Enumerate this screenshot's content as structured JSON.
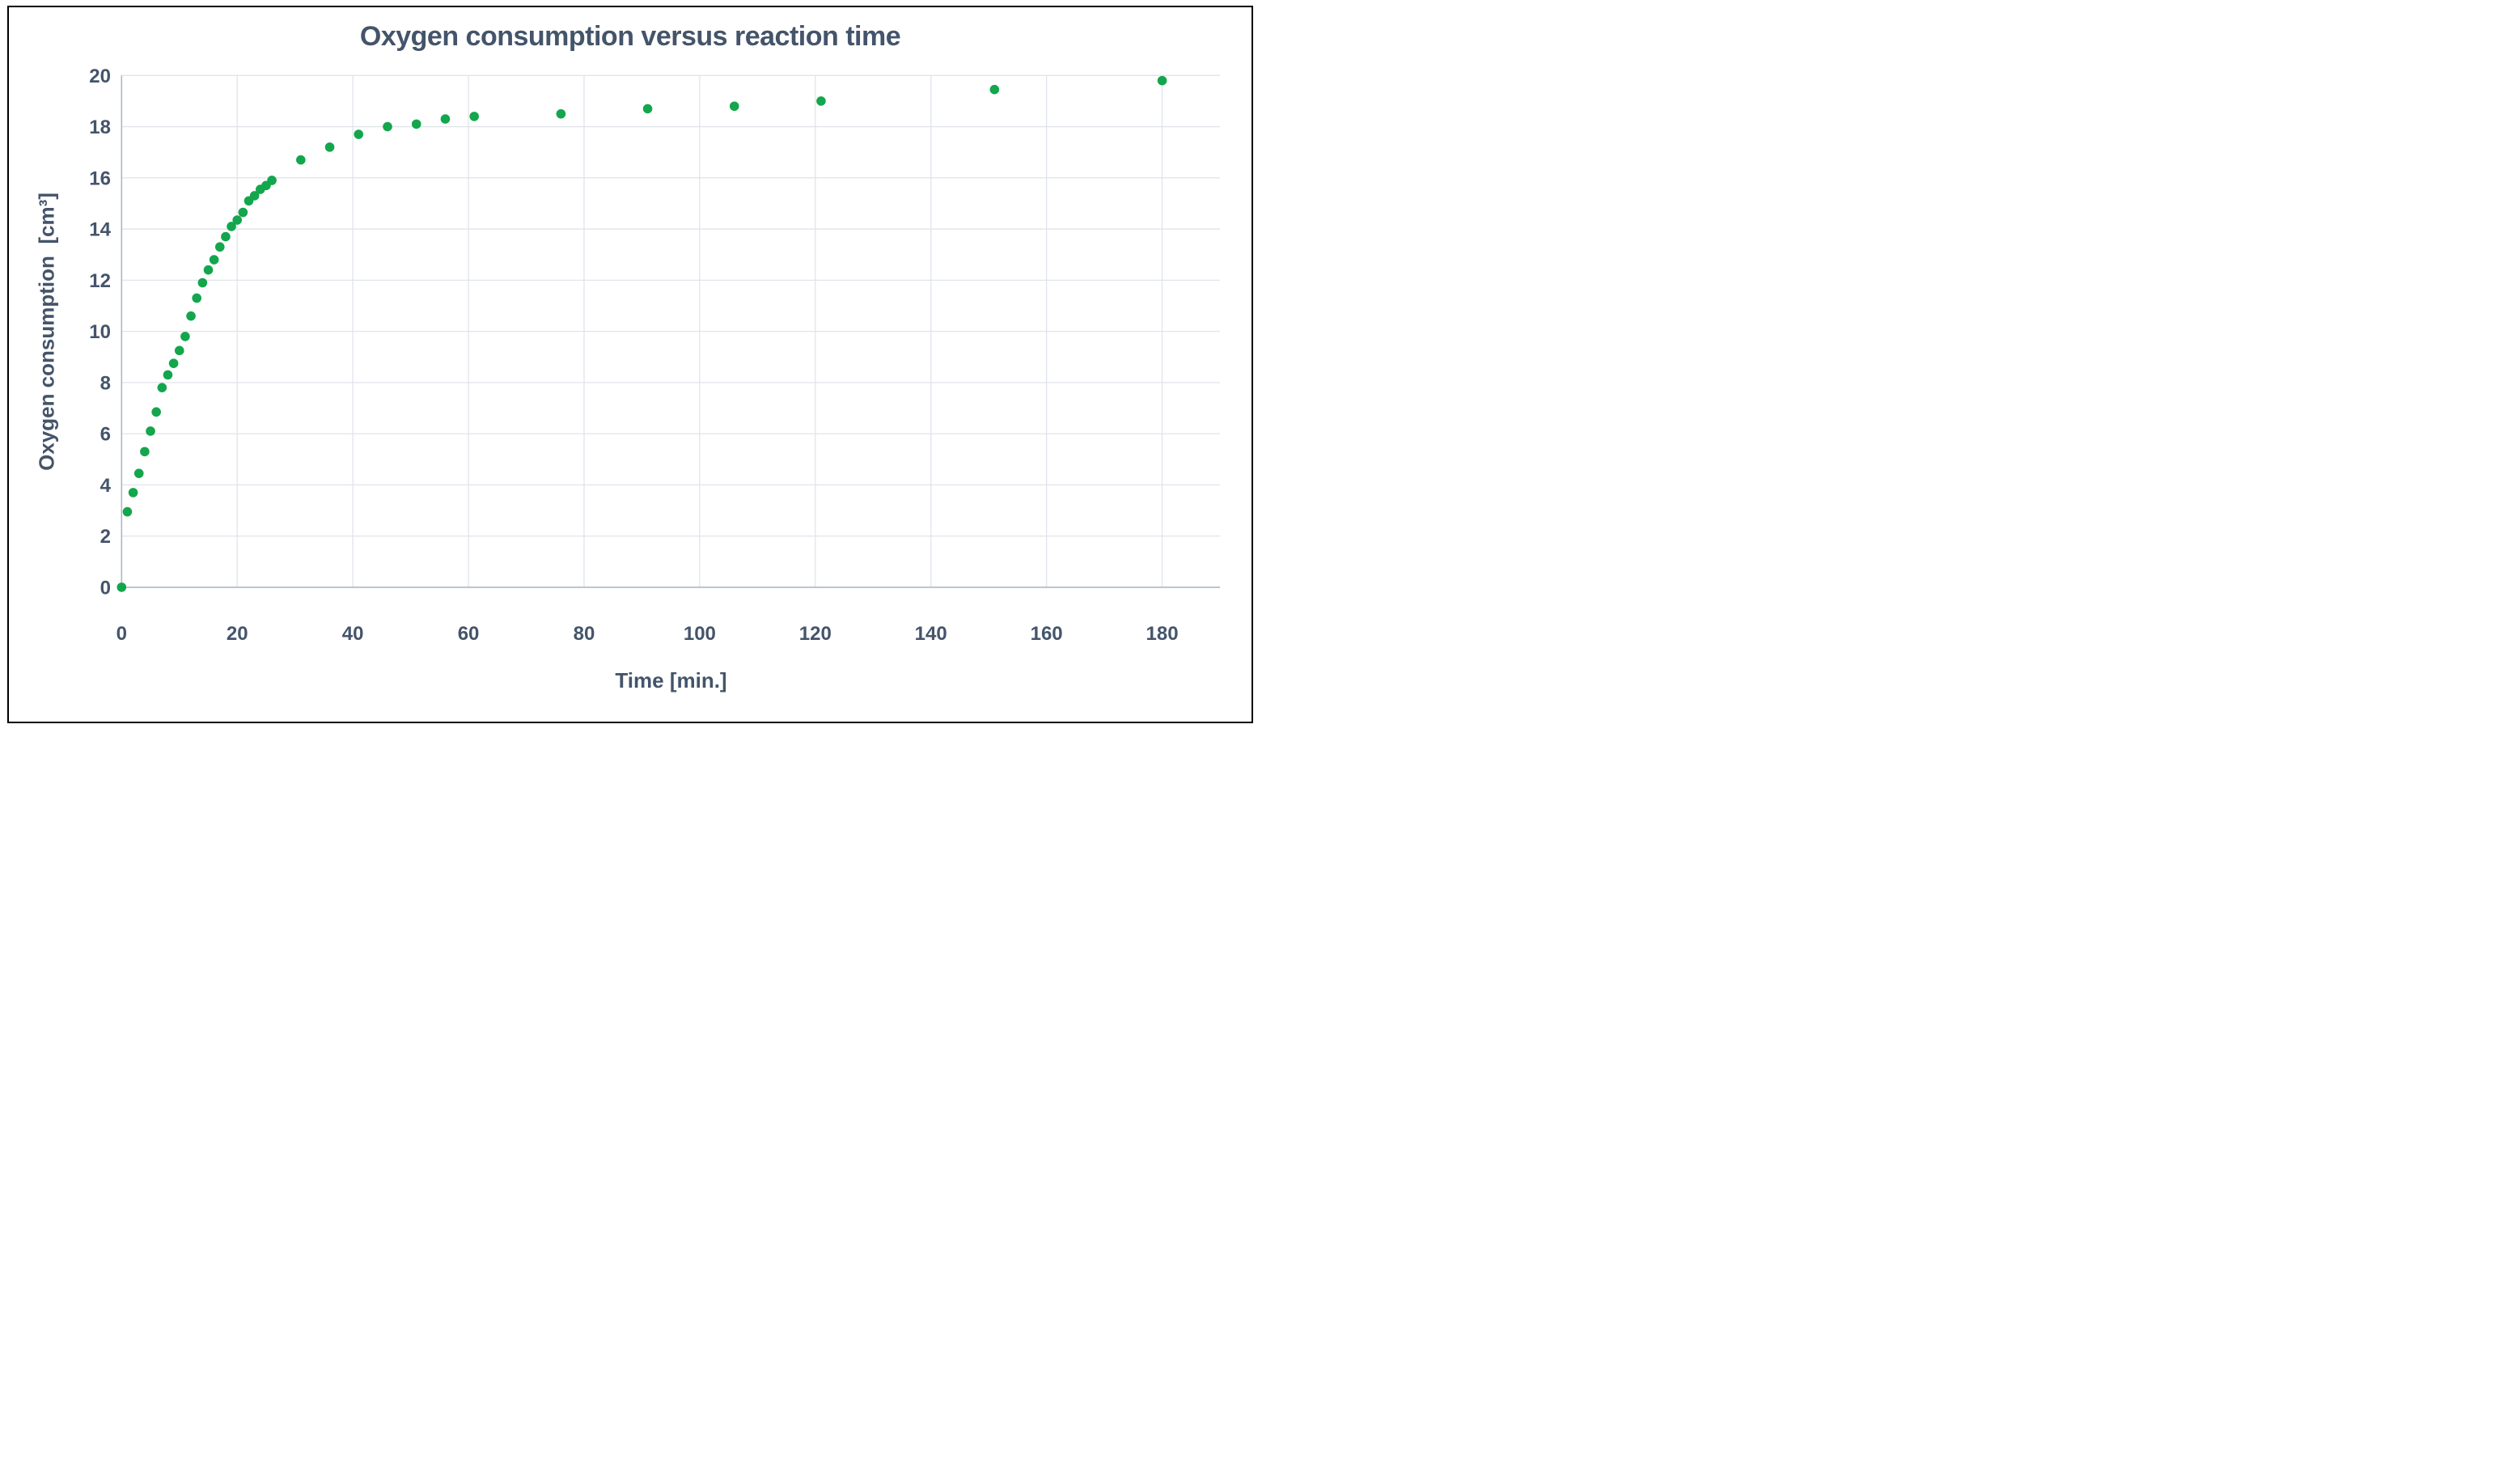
{
  "chart": {
    "title": "Oxygen consumption versus reaction time",
    "x_axis": {
      "label": "Time [min.]",
      "ticks": [
        0,
        20,
        40,
        60,
        80,
        100,
        120,
        140,
        160,
        180
      ]
    },
    "y_axis": {
      "label": "Oxygen consumption  [cm³]",
      "ticks": [
        0,
        2,
        4,
        6,
        8,
        10,
        12,
        14,
        16,
        18,
        20
      ]
    },
    "colors": {
      "text": "#44546A",
      "marker": "#13A64D",
      "gridline": "#E0E4EB",
      "axis_line": "#ACB7C9",
      "frame_border": "#000000",
      "background": "#FFFFFF"
    }
  },
  "chart_data": {
    "type": "scatter",
    "title": "Oxygen consumption versus reaction time",
    "xlabel": "Time [min.]",
    "ylabel": "Oxygen consumption [cm³]",
    "xlim": [
      0,
      190
    ],
    "ylim": [
      0,
      20
    ],
    "x_tick_step": 20,
    "y_tick_step": 2,
    "grid": true,
    "legend": false,
    "series": [
      {
        "name": "Oxygen consumption",
        "marker": "circle",
        "color": "#13A64D",
        "points": [
          [
            0,
            0
          ],
          [
            1,
            2.95
          ],
          [
            2,
            3.7
          ],
          [
            3,
            4.45
          ],
          [
            4,
            5.3
          ],
          [
            5,
            6.1
          ],
          [
            6,
            6.85
          ],
          [
            7,
            7.8
          ],
          [
            8,
            8.3
          ],
          [
            9,
            8.75
          ],
          [
            10,
            9.25
          ],
          [
            11,
            9.8
          ],
          [
            12,
            10.6
          ],
          [
            13,
            11.3
          ],
          [
            14,
            11.9
          ],
          [
            15,
            12.4
          ],
          [
            16,
            12.8
          ],
          [
            17,
            13.3
          ],
          [
            18,
            13.7
          ],
          [
            19,
            14.1
          ],
          [
            20,
            14.35
          ],
          [
            21,
            14.65
          ],
          [
            22,
            15.1
          ],
          [
            23,
            15.3
          ],
          [
            24,
            15.55
          ],
          [
            25,
            15.7
          ],
          [
            26,
            15.9
          ],
          [
            31,
            16.7
          ],
          [
            36,
            17.2
          ],
          [
            41,
            17.7
          ],
          [
            46,
            18.0
          ],
          [
            51,
            18.1
          ],
          [
            56,
            18.3
          ],
          [
            61,
            18.4
          ],
          [
            76,
            18.5
          ],
          [
            91,
            18.7
          ],
          [
            106,
            18.8
          ],
          [
            121,
            19.0
          ],
          [
            151,
            19.45
          ],
          [
            180,
            19.8
          ]
        ]
      }
    ]
  }
}
